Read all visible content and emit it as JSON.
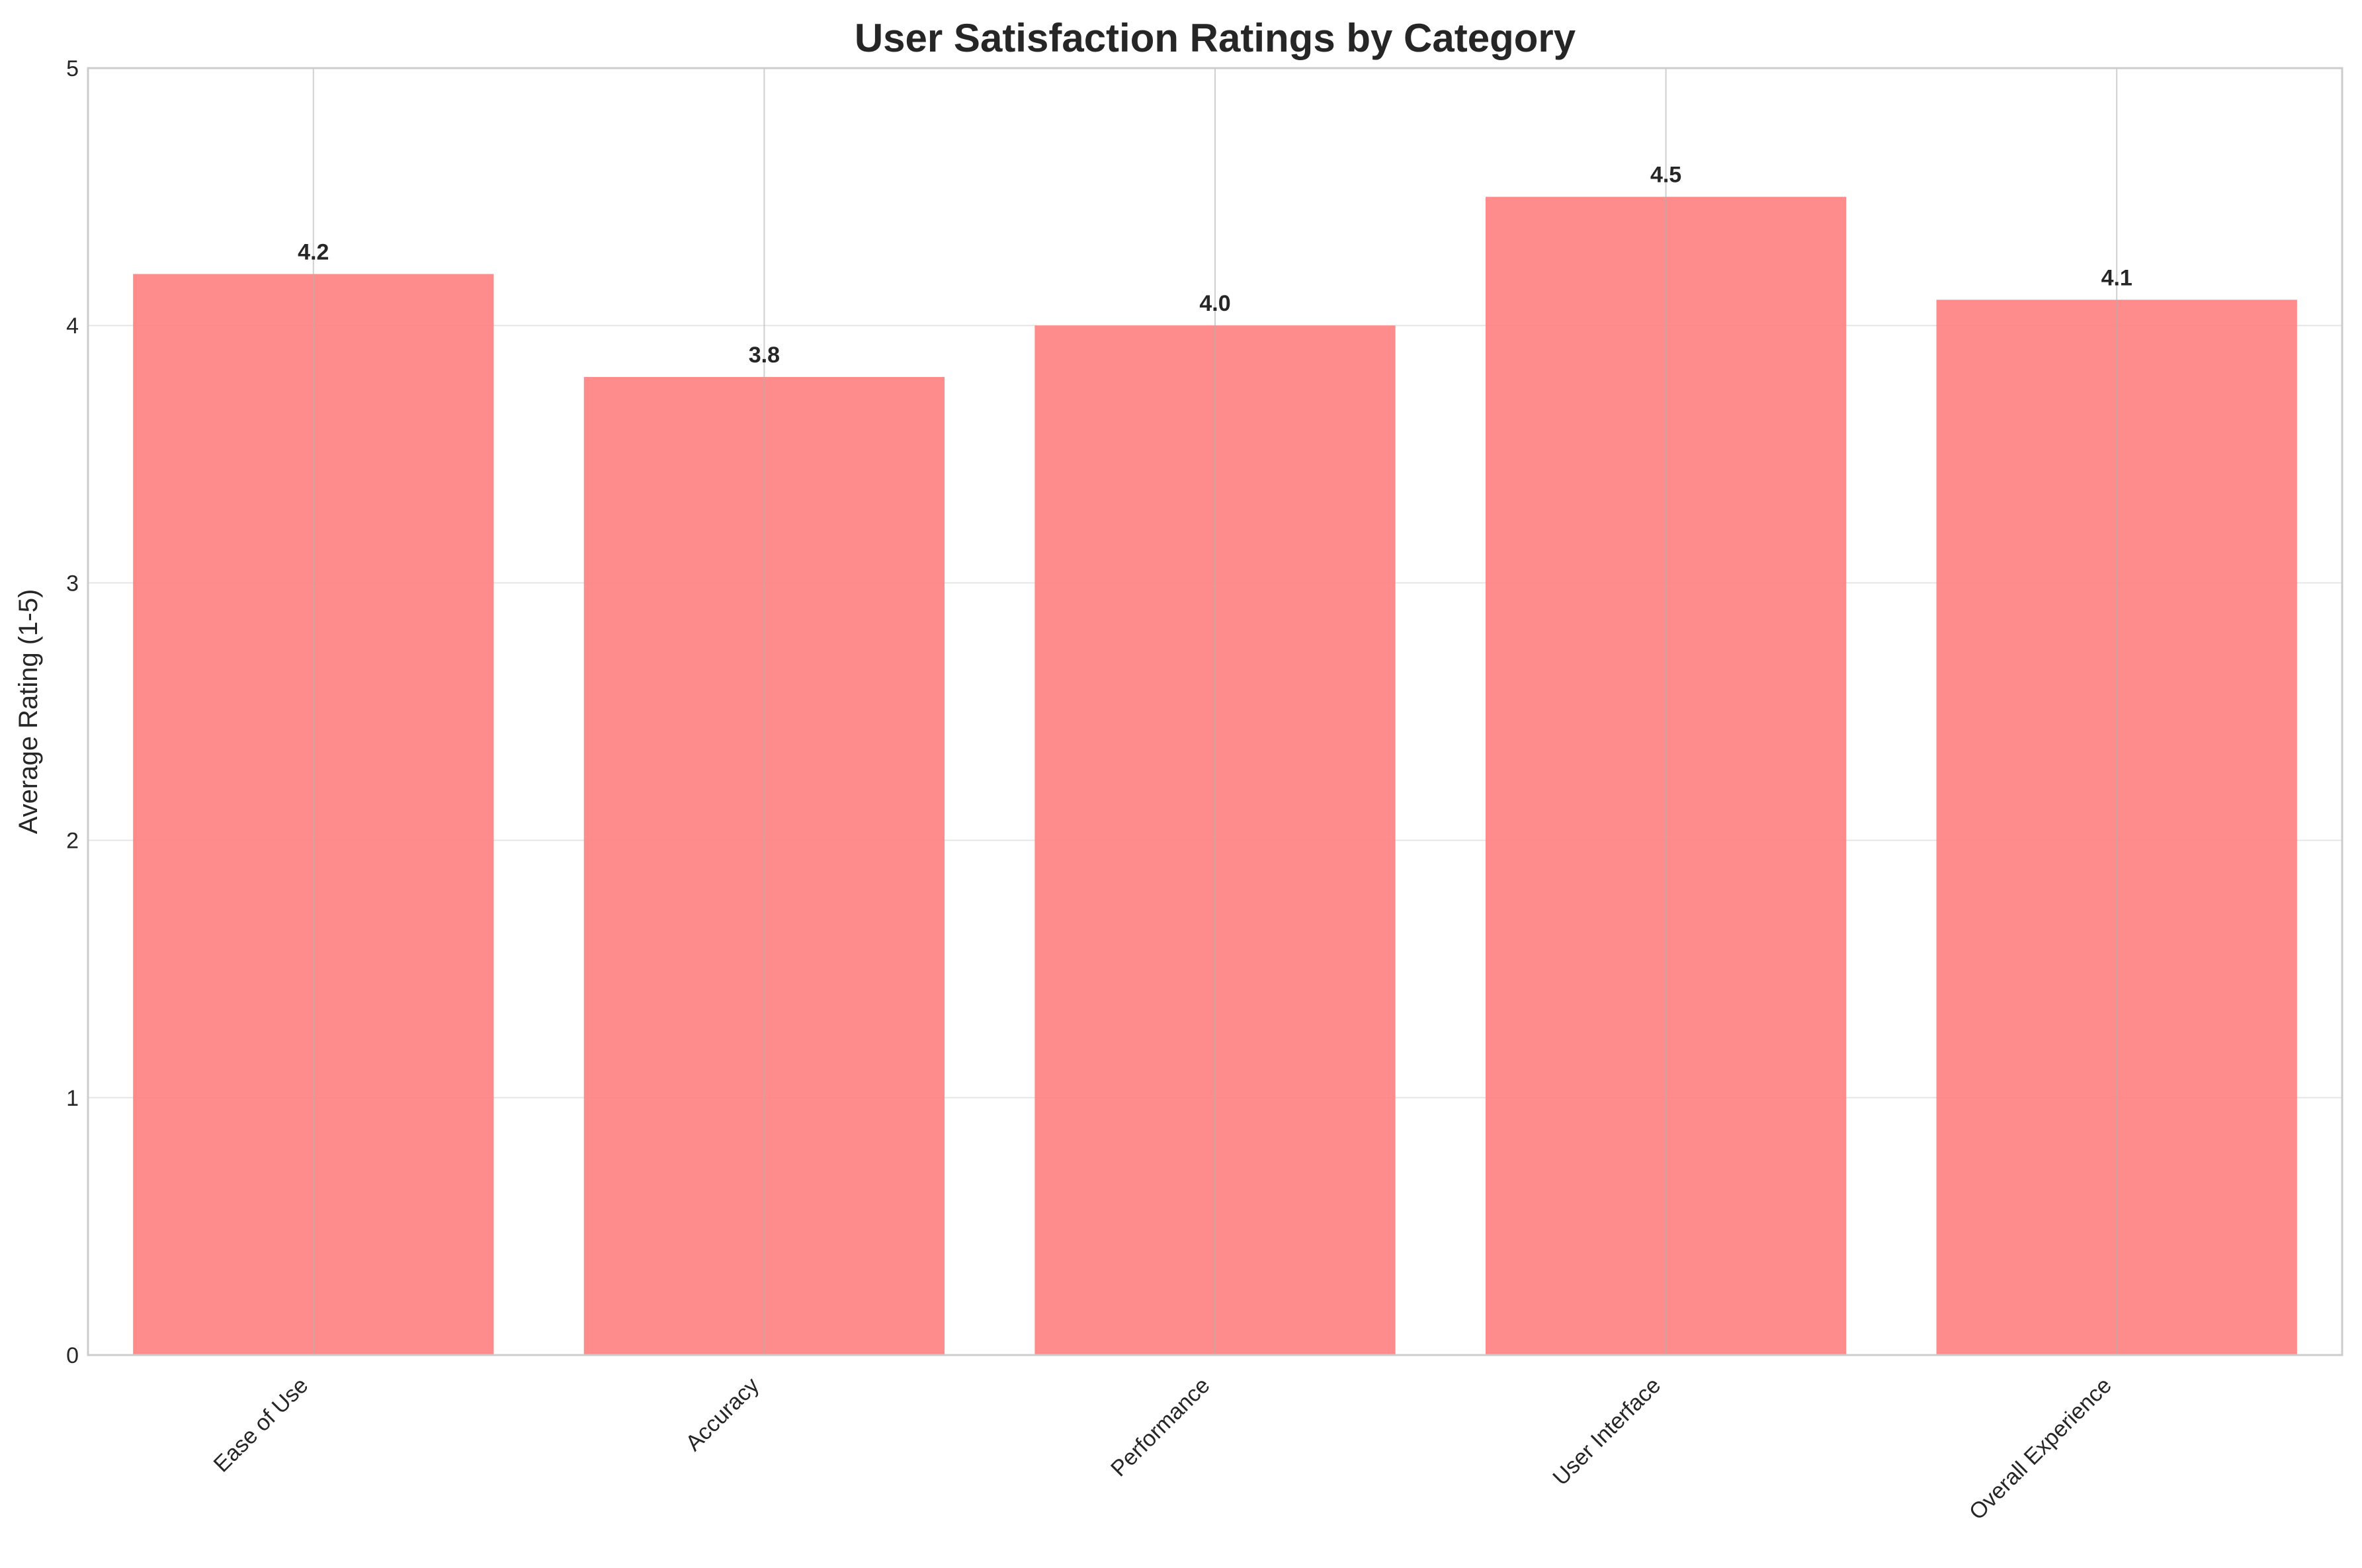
{
  "chart_data": {
    "type": "bar",
    "title": "User Satisfaction Ratings by Category",
    "xlabel": "",
    "ylabel": "Average Rating (1-5)",
    "categories": [
      "Ease of Use",
      "Accuracy",
      "Performance",
      "User Interface",
      "Overall Experience"
    ],
    "values": [
      4.2,
      3.8,
      4.0,
      4.5,
      4.1
    ],
    "value_labels": [
      "4.2",
      "3.8",
      "4.0",
      "4.5",
      "4.1"
    ],
    "ylim": [
      0,
      5
    ],
    "yticks": [
      0,
      1,
      2,
      3,
      4,
      5
    ],
    "ytick_labels": [
      "0",
      "1",
      "2",
      "3",
      "4",
      "5"
    ],
    "grid": true,
    "legend": "none",
    "bar_color": "#ff7f7f",
    "x_tick_rotation_deg": 45
  }
}
